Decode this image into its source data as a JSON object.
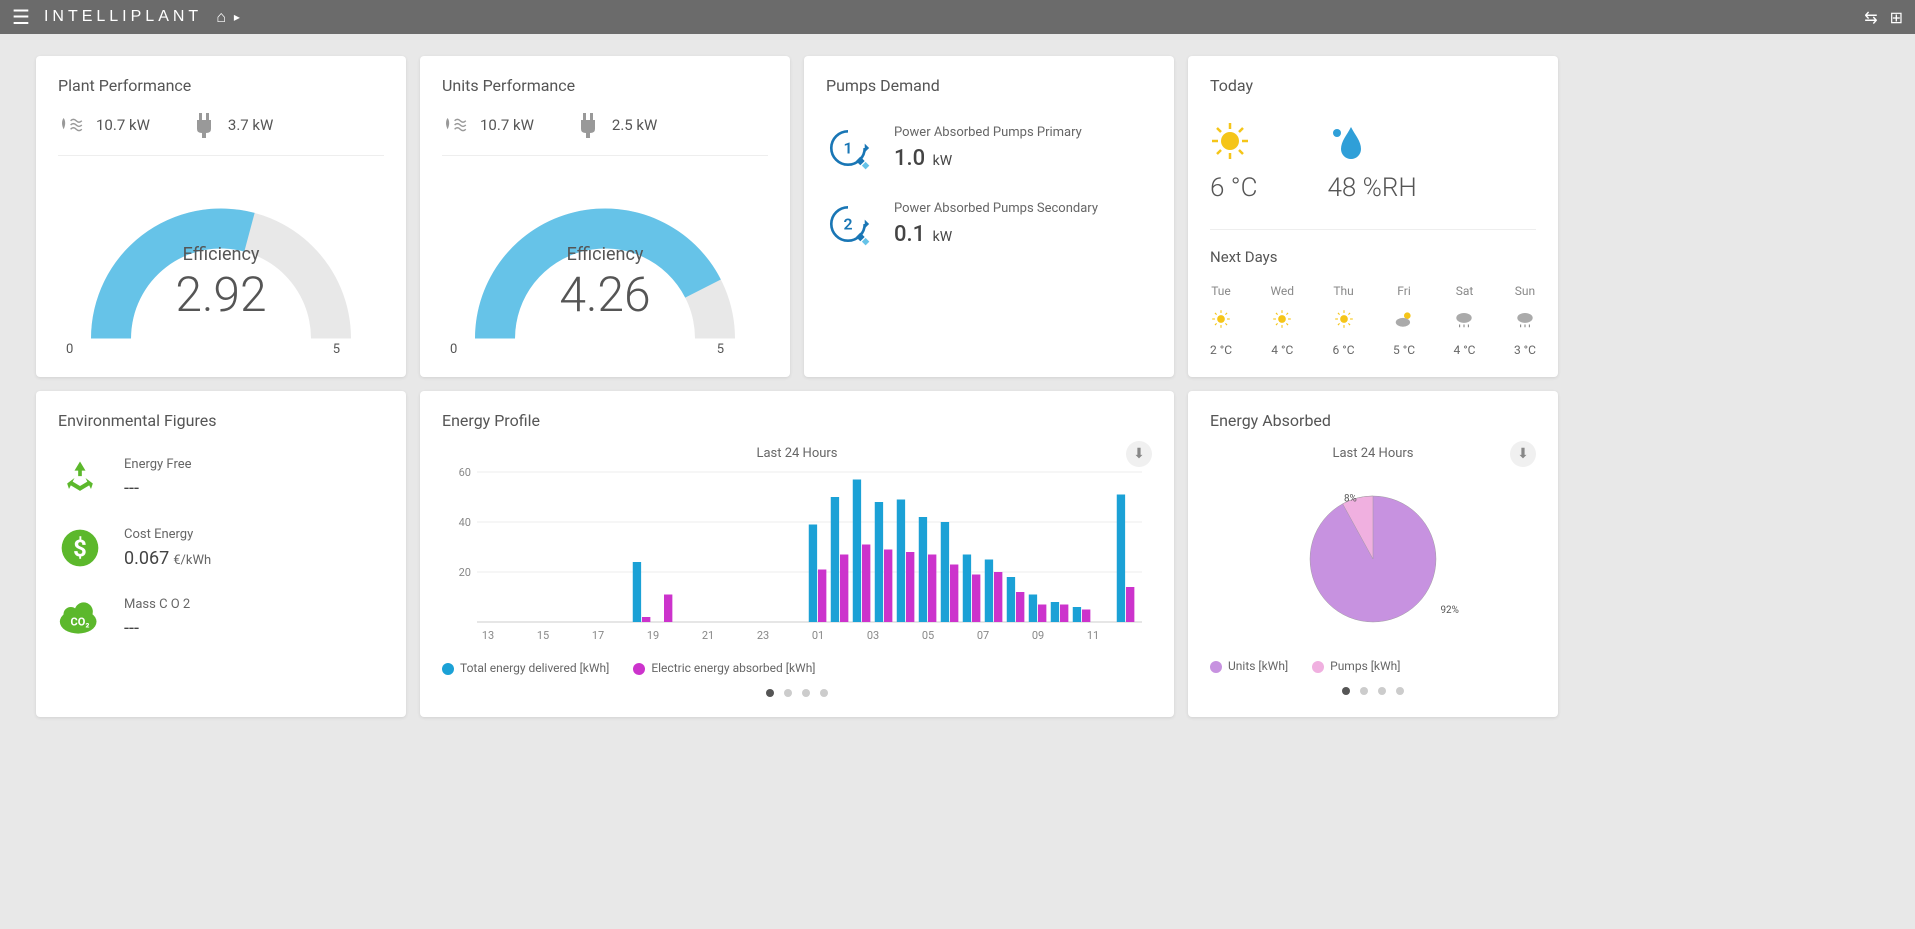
{
  "app": {
    "brand": "INTELLIPLANT"
  },
  "colors": {
    "gauge_fill": "#66c3e8",
    "gauge_track": "#e8e8e8",
    "bar_primary": "#1ba1d6",
    "bar_secondary": "#cc33cc",
    "pie_main": "#c792e0",
    "pie_slice": "#f0b0e0",
    "green": "#5cb82c",
    "sun": "#f5c518",
    "humid": "#2f9fd8",
    "pump_ring": "#1976b5"
  },
  "plant_perf": {
    "title": "Plant Performance",
    "metric1_value": "10.7 kW",
    "metric2_value": "3.7 kW",
    "gauge_label": "Efficiency",
    "gauge_value": "2.92",
    "gauge_min": "0",
    "gauge_max": "5",
    "gauge_fill_deg": 105
  },
  "units_perf": {
    "title": "Units Performance",
    "metric1_value": "10.7 kW",
    "metric2_value": "2.5 kW",
    "gauge_label": "Efficiency",
    "gauge_value": "4.26",
    "gauge_min": "0",
    "gauge_max": "5",
    "gauge_fill_deg": 153
  },
  "pumps": {
    "title": "Pumps Demand",
    "primary": {
      "label": "Power Absorbed Pumps Primary",
      "value": "1.0",
      "unit": "kW",
      "num": "1"
    },
    "secondary": {
      "label": "Power Absorbed Pumps Secondary",
      "value": "0.1",
      "unit": "kW",
      "num": "2"
    }
  },
  "weather": {
    "title": "Today",
    "temp": "6 °C",
    "humidity": "48 %RH",
    "next_title": "Next Days",
    "forecast": [
      {
        "day": "Tue",
        "icon": "sun",
        "temp": "2 °C"
      },
      {
        "day": "Wed",
        "icon": "sun",
        "temp": "4 °C"
      },
      {
        "day": "Thu",
        "icon": "sun",
        "temp": "6 °C"
      },
      {
        "day": "Fri",
        "icon": "cloud-sun",
        "temp": "5 °C"
      },
      {
        "day": "Sat",
        "icon": "cloud-rain",
        "temp": "4 °C"
      },
      {
        "day": "Sun",
        "icon": "cloud-rain",
        "temp": "3 °C"
      }
    ]
  },
  "env": {
    "title": "Environmental Figures",
    "free": {
      "label": "Energy Free",
      "value": "---"
    },
    "cost": {
      "label": "Cost Energy",
      "value": "0.067",
      "unit": "€/kWh"
    },
    "co2": {
      "label": "Mass C O 2",
      "value": "---"
    }
  },
  "energy_profile": {
    "title": "Energy Profile",
    "subtitle": "Last 24 Hours",
    "x_labels": [
      "13",
      "15",
      "17",
      "19",
      "21",
      "23",
      "01",
      "03",
      "05",
      "07",
      "09",
      "11"
    ],
    "y_max": 60,
    "y_ticks": [
      20,
      40,
      60
    ],
    "series1_label": "Total energy delivered [kWh]",
    "series2_label": "Electric energy absorbed [kWh]",
    "series1": [
      0,
      0,
      0,
      0,
      0,
      0,
      0,
      24,
      0,
      0,
      0,
      0,
      0,
      0,
      0,
      39,
      50,
      57,
      48,
      49,
      42,
      40,
      27,
      25,
      18,
      11,
      8,
      6,
      0,
      51
    ],
    "series2": [
      0,
      0,
      0,
      0,
      0,
      0,
      0,
      2,
      11,
      0,
      0,
      0,
      0,
      0,
      0,
      21,
      27,
      31,
      29,
      28,
      27,
      23,
      19,
      20,
      12,
      7,
      7,
      5,
      0,
      14
    ]
  },
  "energy_absorbed": {
    "title": "Energy Absorbed",
    "subtitle": "Last 24 Hours",
    "slice1_label": "Units [kWh]",
    "slice1_pct": "92%",
    "slice1_value": 92,
    "slice2_label": "Pumps [kWh]",
    "slice2_pct": "8%",
    "slice2_value": 8
  }
}
